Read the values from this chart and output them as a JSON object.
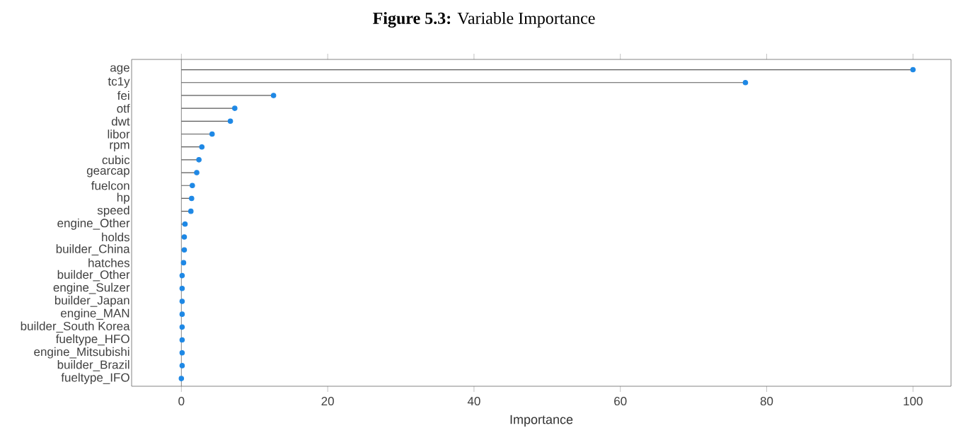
{
  "chart_data": {
    "type": "lollipop",
    "orientation": "horizontal",
    "title": "**Figure 5.3:** Variable Importance",
    "xlabel": "Importance",
    "categories": [
      "age",
      "tc1y",
      "fei",
      "otf",
      "dwt",
      "libor",
      "rpm",
      "cubic",
      "gearcap",
      "fuelcon",
      "hp",
      "speed",
      "engine_Other",
      "holds",
      "builder_China",
      "hatches",
      "builder_Other",
      "engine_Sulzer",
      "builder_Japan",
      "engine_MAN",
      "builder_South Korea",
      "fueltype_HFO",
      "engine_Mitsubishi",
      "builder_Brazil",
      "fueltype_IFO"
    ],
    "values": [
      100,
      77.1,
      12.6,
      7.3,
      6.7,
      4.2,
      2.8,
      2.4,
      2.1,
      1.5,
      1.4,
      1.3,
      0.5,
      0.4,
      0.4,
      0.3,
      0.1,
      0.1,
      0.1,
      0.1,
      0.1,
      0.1,
      0.1,
      0.1,
      0
    ],
    "color": "#1e88e5",
    "xlim": [
      -6.8,
      105.2
    ],
    "xticks": [
      0,
      20,
      40,
      60,
      80,
      100
    ],
    "grid": false,
    "marker": "circle"
  }
}
